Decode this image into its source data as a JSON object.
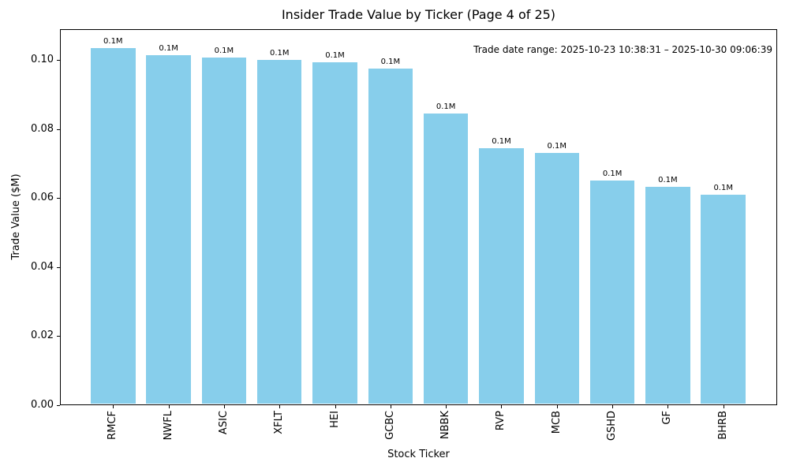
{
  "chart_data": {
    "type": "bar",
    "title": "Insider Trade Value by Ticker (Page 4 of 25)",
    "xlabel": "Stock Ticker",
    "ylabel": "Trade Value ($M)",
    "categories": [
      "RMCF",
      "NWFL",
      "ASIC",
      "XFLT",
      "HEI",
      "GCBC",
      "NBBK",
      "RVP",
      "MCB",
      "GSHD",
      "GF",
      "BHRB"
    ],
    "values": [
      0.1036,
      0.1015,
      0.1008,
      0.1001,
      0.0993,
      0.0975,
      0.0846,
      0.0744,
      0.073,
      0.0651,
      0.0632,
      0.0609
    ],
    "bar_labels": [
      "0.1M",
      "0.1M",
      "0.1M",
      "0.1M",
      "0.1M",
      "0.1M",
      "0.1M",
      "0.1M",
      "0.1M",
      "0.1M",
      "0.1M",
      "0.1M"
    ],
    "yticks": [
      0.0,
      0.02,
      0.04,
      0.06,
      0.08,
      0.1
    ],
    "ytick_labels": [
      "0.00",
      "0.02",
      "0.04",
      "0.06",
      "0.08",
      "0.10"
    ],
    "ylim": [
      0,
      0.109
    ],
    "bar_color": "#87ceeb",
    "grid": false,
    "legend_position": "none",
    "annotation": "Trade date range: 2025-10-23 10:38:31 – 2025-10-30 09:06:39"
  }
}
